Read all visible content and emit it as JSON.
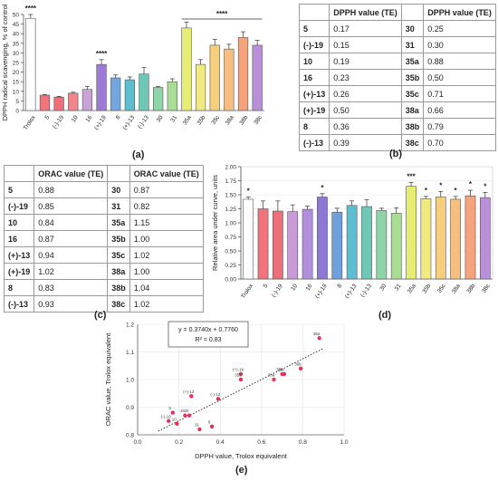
{
  "labels": {
    "a": "(a)",
    "b": "(b)",
    "c": "(c)",
    "d": "(d)",
    "e": "(e)"
  },
  "chart_data": [
    {
      "id": "a",
      "type": "bar",
      "ylabel": "DPPH radical scavenging, % of control",
      "ylim": [
        0,
        50
      ],
      "yticks": [
        0,
        5,
        10,
        15,
        20,
        25,
        30,
        35,
        40,
        45,
        50
      ],
      "categories": [
        "Trolox",
        "5",
        "(-)-19",
        "10",
        "16",
        "(+)-19",
        "8",
        "(+)-13",
        "(-)-13",
        "30",
        "31",
        "35a",
        "35b",
        "35c",
        "38a",
        "38b",
        "38c"
      ],
      "values": [
        48,
        8,
        7,
        9,
        11,
        24,
        17,
        16,
        19,
        12,
        15,
        43,
        24,
        34,
        32,
        38,
        34
      ],
      "errors": [
        2,
        0.4,
        0.4,
        0.5,
        1.5,
        2.5,
        1.5,
        1.5,
        3.5,
        0.5,
        1.5,
        3,
        2.5,
        3,
        2.5,
        3,
        2.5
      ],
      "colors": [
        "#ffffff",
        "#f2737c",
        "#ec6f7a",
        "#f0858e",
        "#c9a2d8",
        "#9c7ad6",
        "#73a6df",
        "#5bbfd1",
        "#6fc8b6",
        "#8fd4a8",
        "#a9dd96",
        "#e7ec72",
        "#f2ea7e",
        "#f5cf7c",
        "#f6bf80",
        "#f4a37c",
        "#b98fd9"
      ],
      "annotations": [
        {
          "text": "****",
          "category": "Trolox"
        },
        {
          "text": "****",
          "category": "(+)-19"
        },
        {
          "text": "****",
          "span": [
            "35a",
            "38c"
          ]
        }
      ]
    },
    {
      "id": "d",
      "type": "bar",
      "ylabel": "Relative area under curve, units",
      "ylim": [
        0,
        2.0
      ],
      "yticks": [
        "0.00",
        "0.25",
        "0.50",
        "0.75",
        "1.00",
        "1.25",
        "1.50",
        "1.75",
        "2.00"
      ],
      "categories": [
        "Trolox",
        "5",
        "(-)-19",
        "10",
        "16",
        "(+)-19",
        "8",
        "(+)-13",
        "(-)-13",
        "30",
        "31",
        "35a",
        "35b",
        "35c",
        "38a",
        "38b",
        "38c"
      ],
      "values": [
        1.42,
        1.25,
        1.21,
        1.2,
        1.24,
        1.46,
        1.19,
        1.31,
        1.29,
        1.22,
        1.17,
        1.65,
        1.43,
        1.46,
        1.42,
        1.48,
        1.45
      ],
      "errors": [
        0.04,
        0.14,
        0.18,
        0.12,
        0.06,
        0.06,
        0.07,
        0.08,
        0.12,
        0.04,
        0.1,
        0.07,
        0.04,
        0.1,
        0.05,
        0.1,
        0.09
      ],
      "colors": [
        "#ffffff",
        "#f2737c",
        "#ec6f7a",
        "#c89ad8",
        "#b18fdc",
        "#8d78d4",
        "#6ea0de",
        "#5bbfd1",
        "#6fc8b6",
        "#8fd4a8",
        "#a9dd96",
        "#e7ec72",
        "#f2ea7e",
        "#f5cf7c",
        "#f6bf80",
        "#f4a37c",
        "#b98fd9"
      ],
      "annotations": [
        {
          "text": "*",
          "category": "Trolox"
        },
        {
          "text": "*",
          "category": "(+)-19"
        },
        {
          "text": "***",
          "category": "35a"
        },
        {
          "text": "*",
          "category": "35b"
        },
        {
          "text": "*",
          "category": "35c"
        },
        {
          "text": "*",
          "category": "38a"
        },
        {
          "text": "*",
          "category": "38b"
        },
        {
          "text": "*",
          "category": "38c"
        }
      ]
    },
    {
      "id": "e",
      "type": "scatter",
      "xlabel": "DPPH value, Trolox equivalent",
      "ylabel": "ORAC value, Trolox equivalent",
      "xlim": [
        0,
        1.0
      ],
      "ylim": [
        0.8,
        1.2
      ],
      "xticks": [
        "0.0",
        "0.2",
        "0.4",
        "0.6",
        "0.8",
        "1.0"
      ],
      "yticks": [
        "0.8",
        "0.9",
        "1.0",
        "1.1",
        "1.2"
      ],
      "points": [
        {
          "label": "5",
          "x": 0.17,
          "y": 0.88
        },
        {
          "label": "(-)-19",
          "x": 0.15,
          "y": 0.85
        },
        {
          "label": "10",
          "x": 0.19,
          "y": 0.84
        },
        {
          "label": "16",
          "x": 0.23,
          "y": 0.87
        },
        {
          "label": "(+)-13",
          "x": 0.26,
          "y": 0.94
        },
        {
          "label": "(+)-19",
          "x": 0.5,
          "y": 1.02
        },
        {
          "label": "8",
          "x": 0.36,
          "y": 0.83
        },
        {
          "label": "(-)-13",
          "x": 0.39,
          "y": 0.93
        },
        {
          "label": "30",
          "x": 0.25,
          "y": 0.87
        },
        {
          "label": "31",
          "x": 0.3,
          "y": 0.82
        },
        {
          "label": "35a",
          "x": 0.88,
          "y": 1.15
        },
        {
          "label": "35b",
          "x": 0.5,
          "y": 1.0
        },
        {
          "label": "35c",
          "x": 0.71,
          "y": 1.02
        },
        {
          "label": "38a",
          "x": 0.66,
          "y": 1.0
        },
        {
          "label": "38b",
          "x": 0.79,
          "y": 1.04
        },
        {
          "label": "38c",
          "x": 0.7,
          "y": 1.02
        }
      ],
      "fit": {
        "slope": 0.374,
        "intercept": 0.776
      },
      "equation": "y = 0.3740x + 0.7760",
      "r2": "R² = 0.83",
      "point_color": "#e8315a"
    }
  ],
  "tables": {
    "b": {
      "headers": [
        "",
        "DPPH value (TE)",
        "",
        "DPPH value (TE)"
      ],
      "rows": [
        [
          "5",
          "0.17",
          "30",
          "0.25"
        ],
        [
          "(-)-19",
          "0.15",
          "31",
          "0.30"
        ],
        [
          "10",
          "0.19",
          "35a",
          "0.88"
        ],
        [
          "16",
          "0.23",
          "35b",
          "0.50"
        ],
        [
          "(+)-13",
          "0.26",
          "35c",
          "0.71"
        ],
        [
          "(+)-19",
          "0.50",
          "38a",
          "0.66"
        ],
        [
          "8",
          "0.36",
          "38b",
          "0.79"
        ],
        [
          "(-)-13",
          "0.39",
          "38c",
          "0.70"
        ]
      ]
    },
    "c": {
      "headers": [
        "",
        "ORAC value (TE)",
        "",
        "ORAC value (TE)"
      ],
      "rows": [
        [
          "5",
          "0.88",
          "30",
          "0.87"
        ],
        [
          "(-)-19",
          "0.85",
          "31",
          "0.82"
        ],
        [
          "10",
          "0.84",
          "35a",
          "1.15"
        ],
        [
          "16",
          "0.87",
          "35b",
          "1.00"
        ],
        [
          "(+)-13",
          "0.94",
          "35c",
          "1.02"
        ],
        [
          "(+)-19",
          "1.02",
          "38a",
          "1.00"
        ],
        [
          "8",
          "0.83",
          "38b",
          "1.04"
        ],
        [
          "(-)-13",
          "0.93",
          "38c",
          "1.02"
        ]
      ]
    }
  }
}
